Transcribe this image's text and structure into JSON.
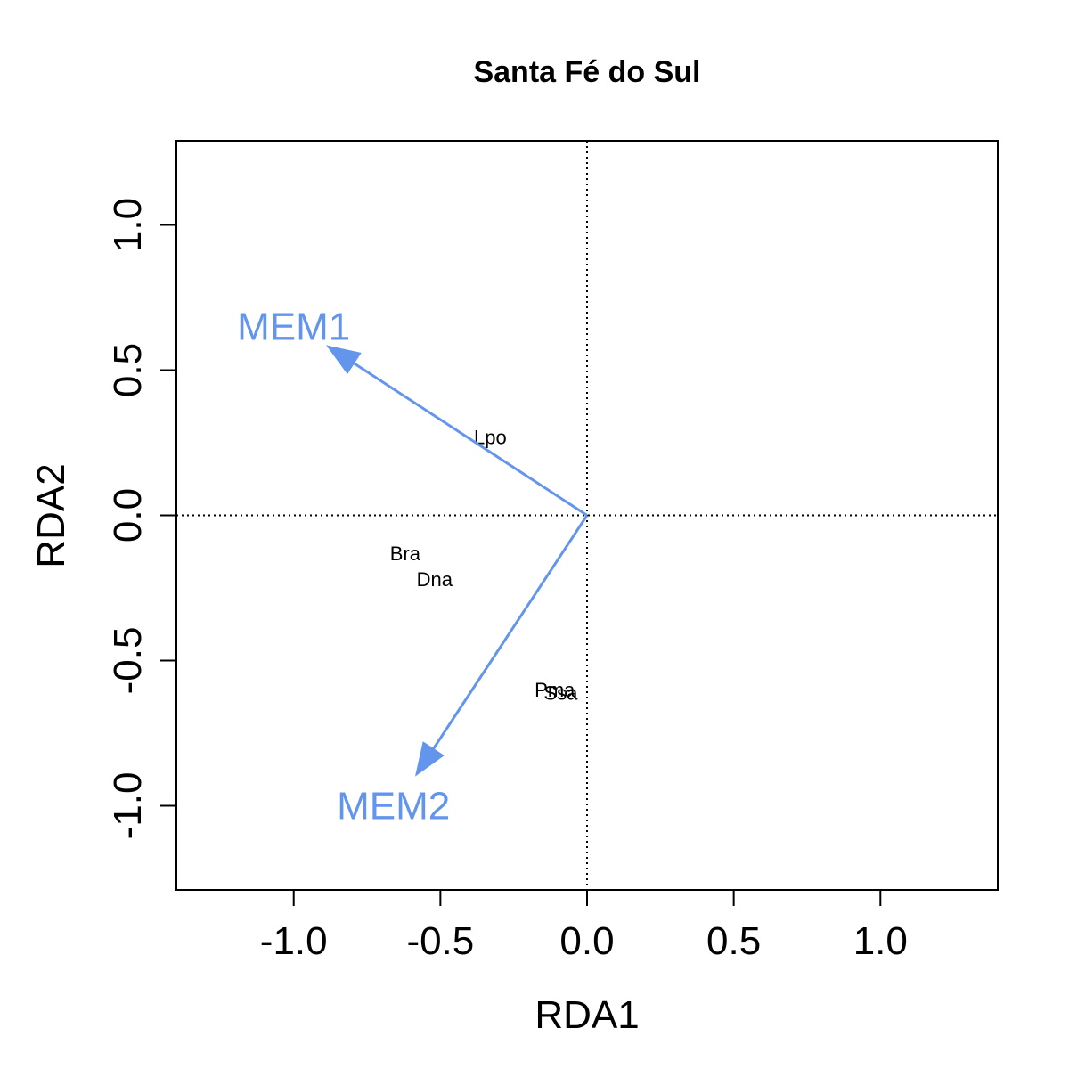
{
  "chart_data": {
    "type": "scatter",
    "title": "Santa Fé do Sul",
    "xlabel": "RDA1",
    "ylabel": "RDA2",
    "xlim": [
      -1.4,
      1.4
    ],
    "ylim": [
      -1.29,
      1.29
    ],
    "xticks": [
      {
        "value": -1.0,
        "label": "-1.0"
      },
      {
        "value": -0.5,
        "label": "-0.5"
      },
      {
        "value": 0.0,
        "label": "0.0"
      },
      {
        "value": 0.5,
        "label": "0.5"
      },
      {
        "value": 1.0,
        "label": "1.0"
      }
    ],
    "yticks": [
      {
        "value": -1.0,
        "label": "-1.0"
      },
      {
        "value": -0.5,
        "label": "-0.5"
      },
      {
        "value": 0.0,
        "label": "0.0"
      },
      {
        "value": 0.5,
        "label": "0.5"
      },
      {
        "value": 1.0,
        "label": "1.0"
      }
    ],
    "reference_lines": {
      "x": 0,
      "y": 0,
      "style": "dotted"
    },
    "species": [
      {
        "label": "Lpo",
        "x": -0.33,
        "y": 0.27
      },
      {
        "label": "Bra",
        "x": -0.62,
        "y": -0.13
      },
      {
        "label": "Dna",
        "x": -0.52,
        "y": -0.22
      },
      {
        "label": "Pma",
        "x": -0.11,
        "y": -0.6
      },
      {
        "label": "Ssa",
        "x": -0.09,
        "y": -0.61
      }
    ],
    "vectors": [
      {
        "label": "MEM1",
        "x": -0.88,
        "y": 0.58,
        "label_x": -1.0,
        "label_y": 0.65
      },
      {
        "label": "MEM2",
        "x": -0.58,
        "y": -0.89,
        "label_x": -0.66,
        "label_y": -1.0
      }
    ],
    "colors": {
      "vector": "#6495ED",
      "text": "#000000",
      "axes": "#000000"
    }
  }
}
